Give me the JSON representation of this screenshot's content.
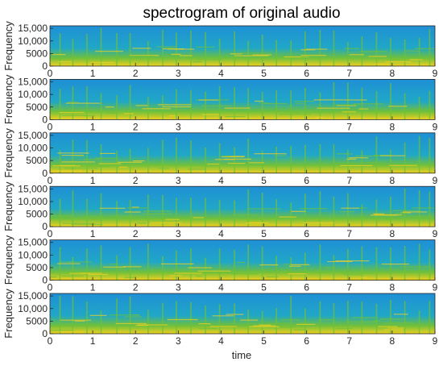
{
  "chart_data": {
    "type": "heatmap",
    "title": "spectrogram of original audio",
    "xlabel": "time",
    "ylabel": "Frequency",
    "xlim": [
      0,
      9
    ],
    "ylim": [
      0,
      16000
    ],
    "x_ticks": [
      0,
      1,
      2,
      3,
      4,
      5,
      6,
      7,
      8,
      9
    ],
    "y_ticks": [
      0,
      5000,
      10000,
      15000
    ],
    "y_tick_labels": [
      "0",
      "5000",
      "10,000",
      "15,000"
    ],
    "colormap": "parula",
    "panels": 6,
    "onsets": [
      0.22,
      0.52,
      0.85,
      1.18,
      1.55,
      1.86,
      2.28,
      2.62,
      2.94,
      3.28,
      3.62,
      3.95,
      4.3,
      4.62,
      4.95,
      5.28,
      5.62,
      5.95,
      6.3,
      6.62,
      6.95,
      7.28,
      7.62,
      7.95,
      8.28,
      8.62,
      8.86
    ],
    "colors": {
      "background": "#1f8fd6",
      "low_energy": "#20a7c6",
      "mid_energy": "#6fc03a",
      "high_energy": "#f0d020"
    }
  }
}
